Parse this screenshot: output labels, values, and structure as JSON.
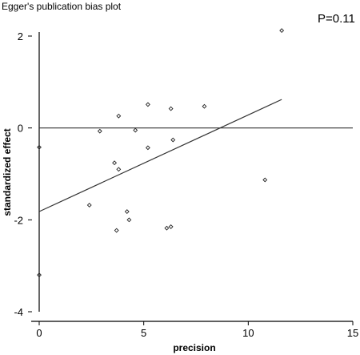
{
  "chart_data": {
    "type": "scatter",
    "title": "Egger's publication bias plot",
    "annotation": "P=0.11",
    "xlabel": "precision",
    "ylabel": "standardized effect",
    "xlim": [
      0,
      15
    ],
    "ylim": [
      -4,
      2
    ],
    "xticks": [
      0,
      5,
      10,
      15
    ],
    "yticks": [
      2,
      0,
      -2,
      -4
    ],
    "reference_line_y": 0,
    "regression_line": {
      "x": [
        0,
        11.6
      ],
      "y": [
        -1.82,
        0.62
      ]
    },
    "points": {
      "x": [
        0,
        0,
        2.4,
        2.9,
        3.6,
        3.7,
        3.8,
        3.8,
        4.2,
        4.3,
        4.6,
        5.2,
        5.2,
        6.1,
        6.3,
        6.3,
        6.4,
        7.9,
        10.8,
        11.6
      ],
      "y": [
        -0.42,
        -3.2,
        -1.68,
        -0.07,
        -0.76,
        -2.23,
        -0.9,
        0.26,
        -1.82,
        -2.0,
        -0.05,
        0.51,
        -0.43,
        -2.18,
        0.42,
        -2.15,
        -0.26,
        0.47,
        -1.13,
        2.12
      ]
    }
  }
}
